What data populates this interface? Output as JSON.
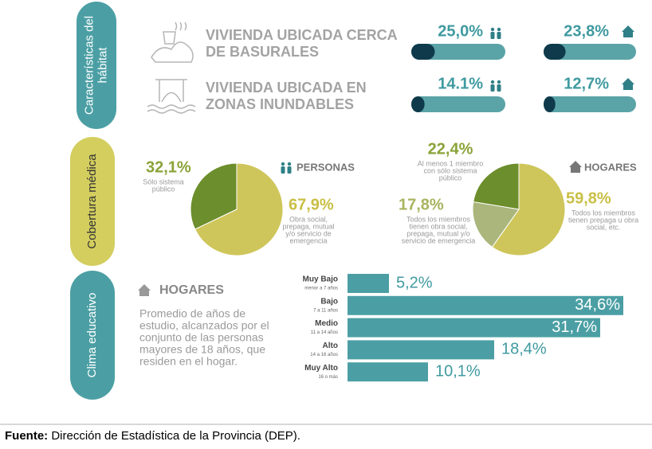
{
  "habitat": {
    "section": [
      "Características del",
      "hábitat"
    ],
    "rows": [
      {
        "title": [
          "VIVIENDA UBICADA CERCA",
          "DE BASURALES"
        ],
        "personas": {
          "value": 25.0,
          "label": "25,0%"
        },
        "hogares": {
          "value": 23.8,
          "label": "23,8%"
        }
      },
      {
        "title": [
          "VIVIENDA UBICADA EN",
          "ZONAS INUNDABLES"
        ],
        "personas": {
          "value": 14.1,
          "label": "14.1%"
        },
        "hogares": {
          "value": 12.7,
          "label": "12,7%"
        }
      }
    ]
  },
  "cobertura": {
    "section": "Cobertura médica",
    "personas": {
      "heading": "PERSONAS",
      "slices": [
        {
          "value": 32.1,
          "label": "32,1%",
          "description": [
            "Sólo sistema",
            "público"
          ],
          "color": "#6c8e2c"
        },
        {
          "value": 67.9,
          "label": "67,9%",
          "description": [
            "Obra social,",
            "prepaga, mutual",
            "y/o servicio de",
            "emergencia"
          ],
          "color": "#cfc65b"
        }
      ]
    },
    "hogares": {
      "heading": "HOGARES",
      "slices": [
        {
          "value": 22.4,
          "label": "22,4%",
          "description": [
            "Al menos 1 miembro",
            "con sólo sistema",
            "público"
          ],
          "color": "#6c8e2c"
        },
        {
          "value": 17.8,
          "label": "17,8%",
          "description": [
            "Todos los miembros",
            "tienen obra social,",
            "prepaga, mutual y/o",
            "servicio de emergencia"
          ],
          "color": "#aab67c"
        },
        {
          "value": 59.8,
          "label": "59,8%",
          "description": [
            "Todos los miembros",
            "tienen prepaga u obra",
            "social, etc."
          ],
          "color": "#cfc65b"
        }
      ]
    }
  },
  "clima": {
    "section": "Clima educativo",
    "heading": "HOGARES",
    "description": [
      "Promedio de años de",
      "estudio, alcanzados por el",
      "conjunto de las personas",
      "mayores de 18 años, que",
      "residen en el hogar."
    ],
    "color": "#4b9fa4",
    "levels": [
      {
        "name": "Muy Bajo",
        "range": "menor a 7 años",
        "value": 5.2,
        "label": "5,2%"
      },
      {
        "name": "Bajo",
        "range": "7 a 11 años",
        "value": 34.6,
        "label": "34,6%"
      },
      {
        "name": "Medio",
        "range": "11 a 14 años",
        "value": 31.7,
        "label": "31,7%"
      },
      {
        "name": "Alto",
        "range": "14 a 16 años",
        "value": 18.4,
        "label": "18,4%"
      },
      {
        "name": "Muy Alto",
        "range": "16 o más",
        "value": 10.1,
        "label": "10,1%"
      }
    ]
  },
  "source": {
    "label": "Fuente:",
    "text": "Dirección de Estadística de la Provincia (DEP)."
  }
}
